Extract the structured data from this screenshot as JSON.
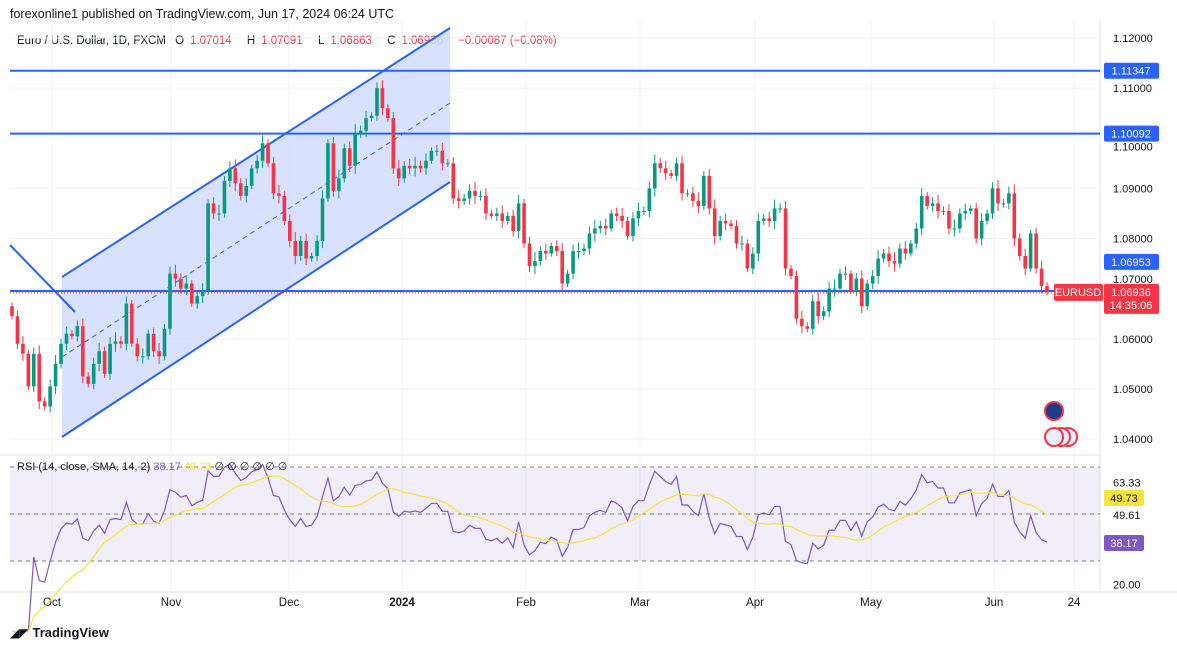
{
  "header": {
    "published": "forexonline1 published on TradingView.com, Jun 17, 2024 06:24 UTC"
  },
  "legend": {
    "symbol": "Euro / U.S. Dollar, 1D, FXCM",
    "open_label": "O",
    "open": "1.07014",
    "high_label": "H",
    "high": "1.07091",
    "low_label": "L",
    "low": "1.06863",
    "close_label": "C",
    "close": "1.06936",
    "change": "−0.00087 (−0.08%)"
  },
  "rsi_legend": {
    "label": "RSI (14, close, SMA, 14, 2)",
    "rsi": "38.17",
    "sma": "49.73",
    "empty": "∅ ∅ ∅ ∅ ∅ ∅"
  },
  "colors": {
    "up": "#089981",
    "down": "#f23645",
    "line": "#2962ff",
    "channel_fill": "#d1dcfd",
    "rsi": "#7e57c2",
    "rsi_sma": "#f7e23b"
  },
  "icons": [
    "eu-flag-icon",
    "us-flag-icon",
    "tradingview-logo"
  ],
  "footer": {
    "brand": "TradingView"
  },
  "chart_data": [
    {
      "type": "candlestick",
      "symbol_tag": "EURUSD",
      "countdown": "14:35:06",
      "ylim": [
        1.0385,
        1.1235
      ],
      "y_ticks": [
        "1.12000",
        "1.11000",
        "1.10000",
        "1.09000",
        "1.08000",
        "1.07000",
        "1.06000",
        "1.05000",
        "1.04000"
      ],
      "x_ticks": [
        "Oct",
        "Nov",
        "Dec",
        "2024",
        "Feb",
        "Mar",
        "Apr",
        "May",
        "Jun",
        "24"
      ],
      "price_lines": [
        {
          "value": 1.11347,
          "label": "1.11347"
        },
        {
          "value": 1.10092,
          "label": "1.10092"
        },
        {
          "value": 1.06953,
          "label": "1.06953"
        }
      ],
      "last_price": {
        "value": 1.06936,
        "label": "1.06936"
      },
      "grid": true,
      "closes": [
        1.0645,
        1.059,
        1.057,
        1.0505,
        1.057,
        1.0475,
        1.0465,
        1.0505,
        1.055,
        1.059,
        1.061,
        1.0605,
        1.0625,
        1.0525,
        1.051,
        1.055,
        1.0575,
        1.053,
        1.059,
        1.0595,
        1.059,
        1.067,
        1.059,
        1.0565,
        1.0565,
        1.061,
        1.0575,
        1.0565,
        1.062,
        1.073,
        1.072,
        1.07,
        1.071,
        1.067,
        1.0685,
        1.0695,
        1.087,
        1.085,
        1.085,
        1.0915,
        1.094,
        1.091,
        1.0885,
        1.0905,
        1.094,
        1.0955,
        1.099,
        1.095,
        1.089,
        1.0885,
        1.0835,
        1.0795,
        1.0765,
        1.0795,
        1.076,
        1.0765,
        1.0795,
        1.088,
        1.099,
        1.0895,
        1.092,
        1.098,
        1.0945,
        1.101,
        1.1015,
        1.104,
        1.1045,
        1.11,
        1.106,
        1.104,
        1.094,
        1.092,
        1.0945,
        1.094,
        1.0945,
        1.094,
        1.0955,
        1.0975,
        1.0975,
        1.095,
        1.095,
        1.088,
        1.0875,
        1.088,
        1.0895,
        1.0885,
        1.0885,
        1.085,
        1.0845,
        1.085,
        1.0835,
        1.0845,
        1.0815,
        1.087,
        1.079,
        1.0745,
        1.0755,
        1.0775,
        1.077,
        1.0785,
        1.0775,
        1.071,
        1.073,
        1.0775,
        1.0775,
        1.078,
        1.081,
        1.082,
        1.0825,
        1.082,
        1.085,
        1.0845,
        1.0835,
        1.0805,
        1.084,
        1.0855,
        1.0855,
        1.09,
        1.095,
        1.094,
        1.093,
        1.0925,
        1.095,
        1.089,
        1.089,
        1.0875,
        1.0865,
        1.0925,
        1.086,
        1.0805,
        1.0835,
        1.083,
        1.0825,
        1.079,
        1.079,
        1.074,
        1.077,
        1.0835,
        1.084,
        1.0835,
        1.086,
        1.086,
        1.074,
        1.0725,
        1.064,
        1.0625,
        1.062,
        1.0675,
        1.0645,
        1.0655,
        1.07,
        1.07,
        1.073,
        1.073,
        1.0695,
        1.072,
        1.0665,
        1.071,
        1.0725,
        1.076,
        1.077,
        1.0755,
        1.075,
        1.078,
        1.077,
        1.079,
        1.082,
        1.0885,
        1.0865,
        1.087,
        1.0855,
        1.0855,
        1.082,
        1.082,
        1.085,
        1.0855,
        1.086,
        1.08,
        1.0835,
        1.085,
        1.09,
        1.087,
        1.087,
        1.089,
        1.08,
        1.0765,
        1.074,
        1.081,
        1.074,
        1.0705,
        1.06936
      ]
    },
    {
      "type": "line",
      "name": "RSI",
      "ylim": [
        15,
        75
      ],
      "y_ticks": [
        "63.33",
        "49.61",
        "20.00"
      ],
      "bands": [
        70,
        50,
        30
      ],
      "last_rsi": "38.17",
      "last_sma": "49.73"
    }
  ]
}
